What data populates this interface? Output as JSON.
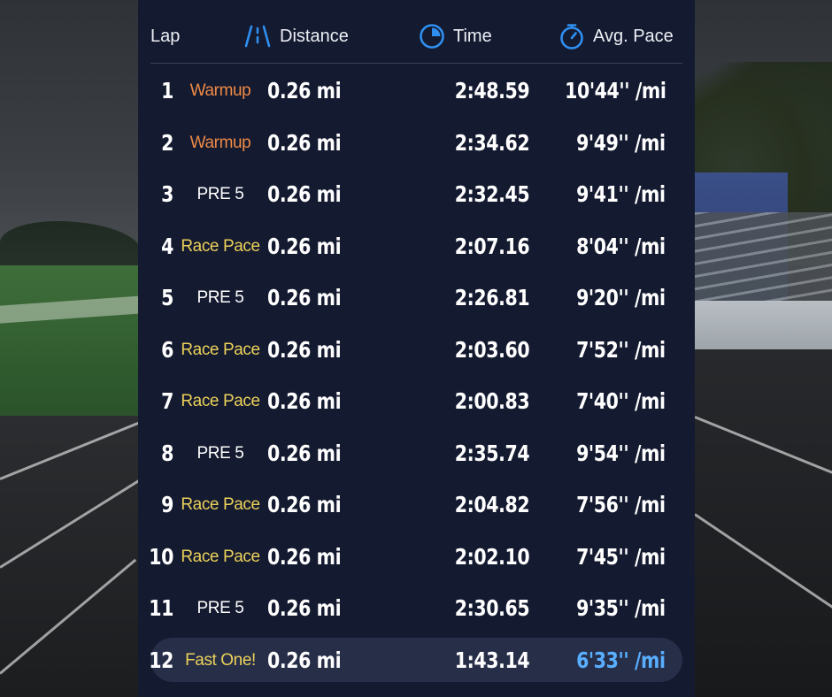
{
  "header": {
    "lap": "Lap",
    "distance": "Distance",
    "time": "Time",
    "avg_pace": "Avg. Pace"
  },
  "colors": {
    "panel": "#141a30",
    "accent_blue": "#2f8ff0",
    "warmup": "#ee8a45",
    "race": "#ecd15a",
    "best_pace": "#58aeff"
  },
  "laps": [
    {
      "lap": "1",
      "label": "Warmup",
      "distance": "0.26 mi",
      "time": "2:48.59",
      "pace": "10'44'' /mi"
    },
    {
      "lap": "2",
      "label": "Warmup",
      "distance": "0.26 mi",
      "time": "2:34.62",
      "pace": "9'49'' /mi"
    },
    {
      "lap": "3",
      "label": "PRE 5",
      "distance": "0.26 mi",
      "time": "2:32.45",
      "pace": "9'41'' /mi"
    },
    {
      "lap": "4",
      "label": "Race Pace",
      "distance": "0.26 mi",
      "time": "2:07.16",
      "pace": "8'04'' /mi"
    },
    {
      "lap": "5",
      "label": "PRE 5",
      "distance": "0.26 mi",
      "time": "2:26.81",
      "pace": "9'20'' /mi"
    },
    {
      "lap": "6",
      "label": "Race Pace",
      "distance": "0.26 mi",
      "time": "2:03.60",
      "pace": "7'52'' /mi"
    },
    {
      "lap": "7",
      "label": "Race Pace",
      "distance": "0.26 mi",
      "time": "2:00.83",
      "pace": "7'40'' /mi"
    },
    {
      "lap": "8",
      "label": "PRE 5",
      "distance": "0.26 mi",
      "time": "2:35.74",
      "pace": "9'54'' /mi"
    },
    {
      "lap": "9",
      "label": "Race Pace",
      "distance": "0.26 mi",
      "time": "2:04.82",
      "pace": "7'56'' /mi"
    },
    {
      "lap": "10",
      "label": "Race Pace",
      "distance": "0.26 mi",
      "time": "2:02.10",
      "pace": "7'45'' /mi"
    },
    {
      "lap": "11",
      "label": "PRE 5",
      "distance": "0.26 mi",
      "time": "2:30.65",
      "pace": "9'35'' /mi"
    },
    {
      "lap": "12",
      "label": "Fast One!",
      "distance": "0.26 mi",
      "time": "1:43.14",
      "pace": "6'33'' /mi"
    }
  ]
}
